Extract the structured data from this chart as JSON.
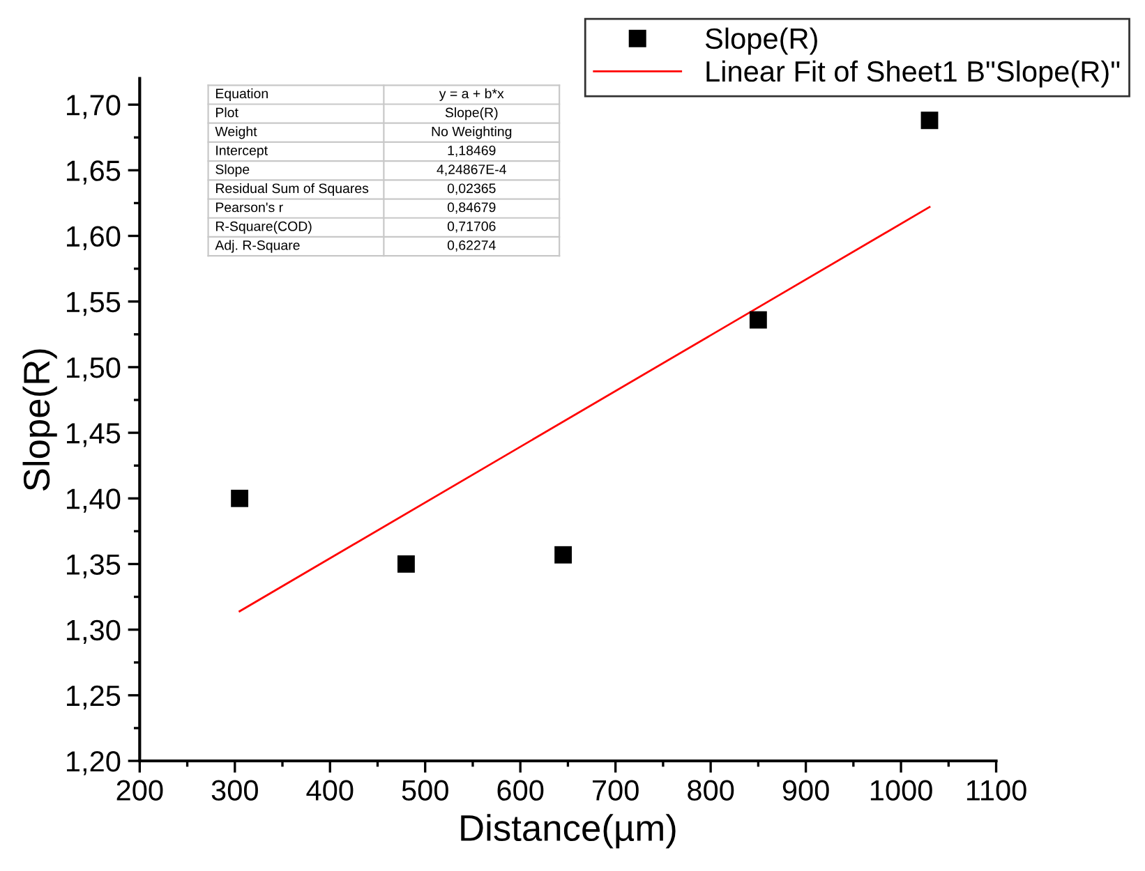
{
  "chart_data": {
    "type": "scatter",
    "xlabel": "Distance(µm)",
    "ylabel": "Slope(R)",
    "legend": "top right",
    "marker": "square",
    "xlim": [
      200,
      1100
    ],
    "xticks": [
      200,
      300,
      400,
      500,
      600,
      700,
      800,
      900,
      1000,
      1100
    ],
    "ylim": [
      1.2,
      1.72
    ],
    "yticks": [
      {
        "value": 1.2,
        "label": "1,20"
      },
      {
        "value": 1.25,
        "label": "1,25"
      },
      {
        "value": 1.3,
        "label": "1,30"
      },
      {
        "value": 1.35,
        "label": "1,35"
      },
      {
        "value": 1.4,
        "label": "1,40"
      },
      {
        "value": 1.45,
        "label": "1,45"
      },
      {
        "value": 1.5,
        "label": "1,50"
      },
      {
        "value": 1.55,
        "label": "1,55"
      },
      {
        "value": 1.6,
        "label": "1,60"
      },
      {
        "value": 1.65,
        "label": "1,65"
      },
      {
        "value": 1.7,
        "label": "1,70"
      }
    ],
    "series": [
      {
        "name": "Slope(R)",
        "color": "#000000",
        "x": [
          305,
          480,
          645,
          850,
          1030
        ],
        "values": [
          1.4,
          1.35,
          1.357,
          1.536,
          1.688
        ]
      },
      {
        "name": "Linear Fit of Sheet1 B\"Slope(R)\"",
        "type": "line",
        "color": "#ff0000",
        "line_style": "solid",
        "marker": "none",
        "x": [
          305,
          1030
        ],
        "values": [
          1.314,
          1.622
        ]
      }
    ],
    "annotations": [
      "Equation",
      "y = a + b*x",
      "Plot",
      "Slope(R)",
      "Weight",
      "No Weighting",
      "Intercept",
      "1,18469",
      "Slope",
      "4,24867E-4",
      "Residual Sum of Squares",
      "0,02365",
      "Pearson's r",
      "0,84679",
      "R-Square(COD)",
      "0,71706",
      "Adj. R-Square",
      "0,62274"
    ]
  }
}
